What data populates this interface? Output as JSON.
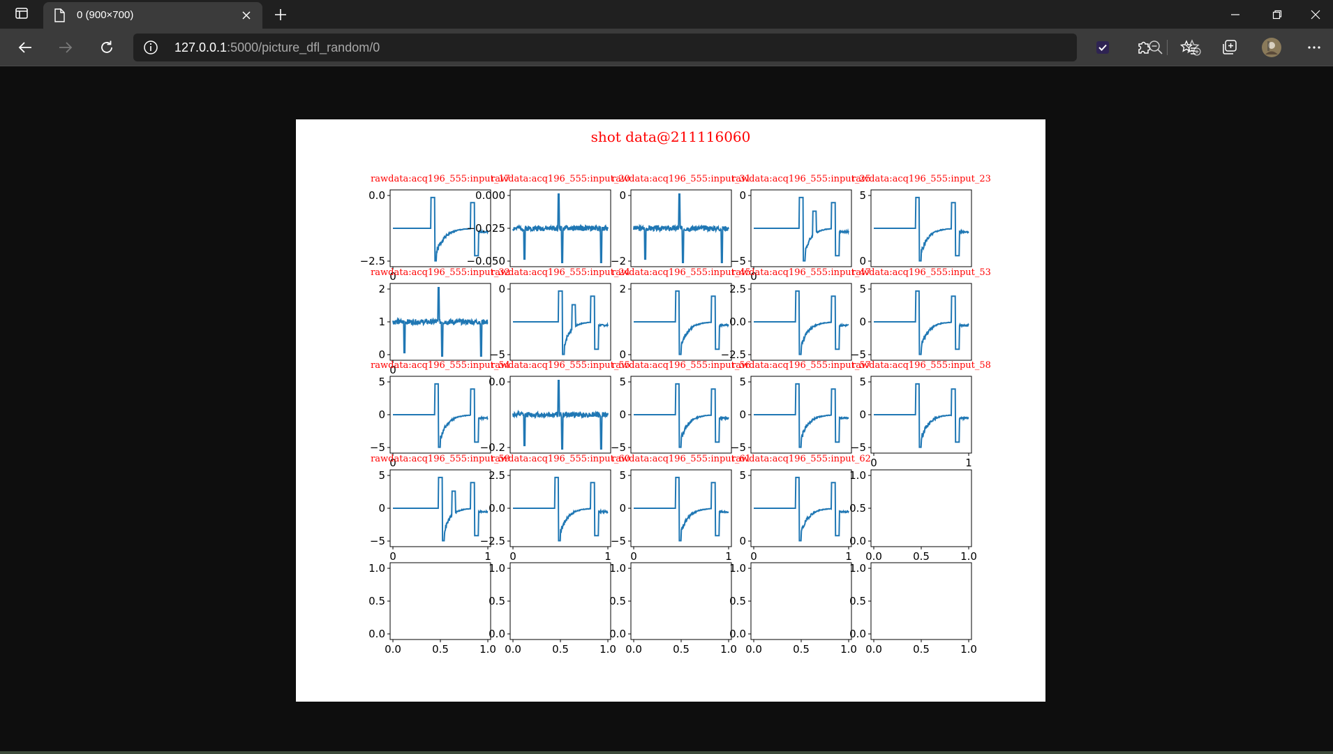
{
  "browser": {
    "tab_title": "0 (900×700)",
    "url_host": "127.0.0.1",
    "url_path": ":5000/picture_dfl_random/0",
    "icons": [
      "tab-actions-icon",
      "page-icon",
      "close-icon",
      "plus-icon",
      "back-icon",
      "forward-icon",
      "refresh-icon",
      "info-icon",
      "zoom-out-icon",
      "favorite-add-icon",
      "checkbox-extension-icon",
      "puzzle-icon",
      "favorites-icon",
      "collections-icon",
      "profile-avatar",
      "more-icon",
      "minimize-icon",
      "restore-icon",
      "window-close-icon"
    ]
  },
  "colors": {
    "title": "#ff0000",
    "line": "#1f77b4",
    "browser_bg": "#202020",
    "toolbar_bg": "#3b3b3b"
  },
  "chart_data": {
    "type": "line",
    "title": "shot data@211116060",
    "grid": false,
    "layout": "5x5 subplots",
    "subplots": [
      {
        "name": "rawdata:acq196_555:input_17",
        "ylim": [
          -4.6,
          2.6
        ],
        "yticks": [
          "0.0",
          "−2.5"
        ],
        "xticks": [
          "0"
        ],
        "shape": "A",
        "seed": 1
      },
      {
        "name": "rawdata:acq196_555:input_20",
        "ylim": [
          -0.066,
          0.008
        ],
        "yticks": [
          "0.000",
          "−0.025",
          "−0.050"
        ],
        "xticks": [],
        "shape": "C",
        "seed": 2
      },
      {
        "name": "rawdata:acq196_555:input_31",
        "ylim": [
          -3.3,
          0.7
        ],
        "yticks": [
          "0",
          "−2"
        ],
        "xticks": [],
        "shape": "C",
        "seed": 3
      },
      {
        "name": "rawdata:acq196_555:input_25",
        "ylim": [
          -5,
          5
        ],
        "yticks": [
          "0",
          "−5"
        ],
        "xticks": [
          "0"
        ],
        "shape": "B",
        "seed": 4
      },
      {
        "name": "rawdata:acq196_555:input_23",
        "ylim": [
          -4.5,
          5
        ],
        "yticks": [
          "5",
          "0"
        ],
        "xticks": [],
        "shape": "D",
        "seed": 5
      },
      {
        "name": "rawdata:acq196_555:input_32",
        "ylim": [
          -0.35,
          2.2
        ],
        "yticks": [
          "2",
          "1",
          "0"
        ],
        "xticks": [
          "0"
        ],
        "shape": "C",
        "seed": 6
      },
      {
        "name": "rawdata:acq196_555:input_24",
        "ylim": [
          -8.5,
          4
        ],
        "yticks": [
          "0",
          "−5"
        ],
        "xticks": [],
        "shape": "B",
        "seed": 7
      },
      {
        "name": "rawdata:acq196_555:input_45",
        "ylim": [
          -1.2,
          3
        ],
        "yticks": [
          "2",
          "0"
        ],
        "xticks": [],
        "shape": "D",
        "seed": 8
      },
      {
        "name": "rawdata:acq196_555:input_47",
        "ylim": [
          -3.3,
          3
        ],
        "yticks": [
          "2.5",
          "0.0",
          "−2.5"
        ],
        "xticks": [],
        "shape": "D",
        "seed": 9
      },
      {
        "name": "rawdata:acq196_555:input_53",
        "ylim": [
          -5.3,
          7
        ],
        "yticks": [
          "5",
          "0",
          "−5"
        ],
        "xticks": [],
        "shape": "D",
        "seed": 10
      },
      {
        "name": "rawdata:acq196_555:input_54",
        "ylim": [
          -8,
          8
        ],
        "yticks": [
          "5",
          "0",
          "−5"
        ],
        "xticks": [
          "0"
        ],
        "shape": "D",
        "seed": 11
      },
      {
        "name": "rawdata:acq196_555:input_55",
        "ylim": [
          -0.23,
          0.22
        ],
        "yticks": [
          "0.0",
          "−0.2"
        ],
        "xticks": [],
        "shape": "C",
        "seed": 12
      },
      {
        "name": "rawdata:acq196_555:input_56",
        "ylim": [
          -4.7,
          6.5
        ],
        "yticks": [
          "5",
          "0",
          "−5"
        ],
        "xticks": [],
        "shape": "D",
        "seed": 13
      },
      {
        "name": "rawdata:acq196_555:input_57",
        "ylim": [
          -5,
          5
        ],
        "yticks": [
          "5",
          "0",
          "−5"
        ],
        "xticks": [],
        "shape": "D",
        "seed": 14
      },
      {
        "name": "rawdata:acq196_555:input_58",
        "ylim": [
          -5,
          5
        ],
        "yticks": [
          "5",
          "0",
          "−5"
        ],
        "xticks": [
          "0",
          "1"
        ],
        "shape": "D",
        "seed": 15
      },
      {
        "name": "rawdata:acq196_555:input_59",
        "ylim": [
          -5.5,
          5.5
        ],
        "yticks": [
          "5",
          "0",
          "−5"
        ],
        "xticks": [
          "0",
          "1"
        ],
        "shape": "B",
        "seed": 16
      },
      {
        "name": "rawdata:acq196_555:input_60",
        "ylim": [
          -3.5,
          5.5
        ],
        "yticks": [
          "2.5",
          "0.0",
          "−2.5"
        ],
        "xticks": [
          "0",
          "1"
        ],
        "shape": "D",
        "seed": 17
      },
      {
        "name": "rawdata:acq196_555:input_61",
        "ylim": [
          -6.5,
          8
        ],
        "yticks": [
          "5",
          "0",
          "−5"
        ],
        "xticks": [
          "0",
          "1"
        ],
        "shape": "D",
        "seed": 18
      },
      {
        "name": "rawdata:acq196_555:input_62",
        "ylim": [
          -3.2,
          7
        ],
        "yticks": [
          "5",
          "0"
        ],
        "xticks": [
          "0",
          "1"
        ],
        "shape": "D",
        "seed": 19
      },
      {
        "name": "",
        "ylim": [
          0,
          1
        ],
        "yticks": [
          "1.0",
          "0.5",
          "0.0"
        ],
        "xticks": [
          "0.0",
          "0.5",
          "1.0"
        ],
        "shape": "empty"
      },
      {
        "name": "",
        "ylim": [
          0,
          1
        ],
        "yticks": [
          "1.0",
          "0.5",
          "0.0"
        ],
        "xticks": [
          "0.0",
          "0.5",
          "1.0"
        ],
        "shape": "empty"
      },
      {
        "name": "",
        "ylim": [
          0,
          1
        ],
        "yticks": [
          "1.0",
          "0.5",
          "0.0"
        ],
        "xticks": [
          "0.0",
          "0.5",
          "1.0"
        ],
        "shape": "empty"
      },
      {
        "name": "",
        "ylim": [
          0,
          1
        ],
        "yticks": [
          "1.0",
          "0.5",
          "0.0"
        ],
        "xticks": [
          "0.0",
          "0.5",
          "1.0"
        ],
        "shape": "empty"
      },
      {
        "name": "",
        "ylim": [
          0,
          1
        ],
        "yticks": [
          "1.0",
          "0.5",
          "0.0"
        ],
        "xticks": [
          "0.0",
          "0.5",
          "1.0"
        ],
        "shape": "empty"
      },
      {
        "name": "",
        "ylim": [
          0,
          1
        ],
        "yticks": [
          "1.0",
          "0.5",
          "0.0"
        ],
        "xticks": [
          "0.0",
          "0.5",
          "1.0"
        ],
        "shape": "empty"
      }
    ]
  }
}
